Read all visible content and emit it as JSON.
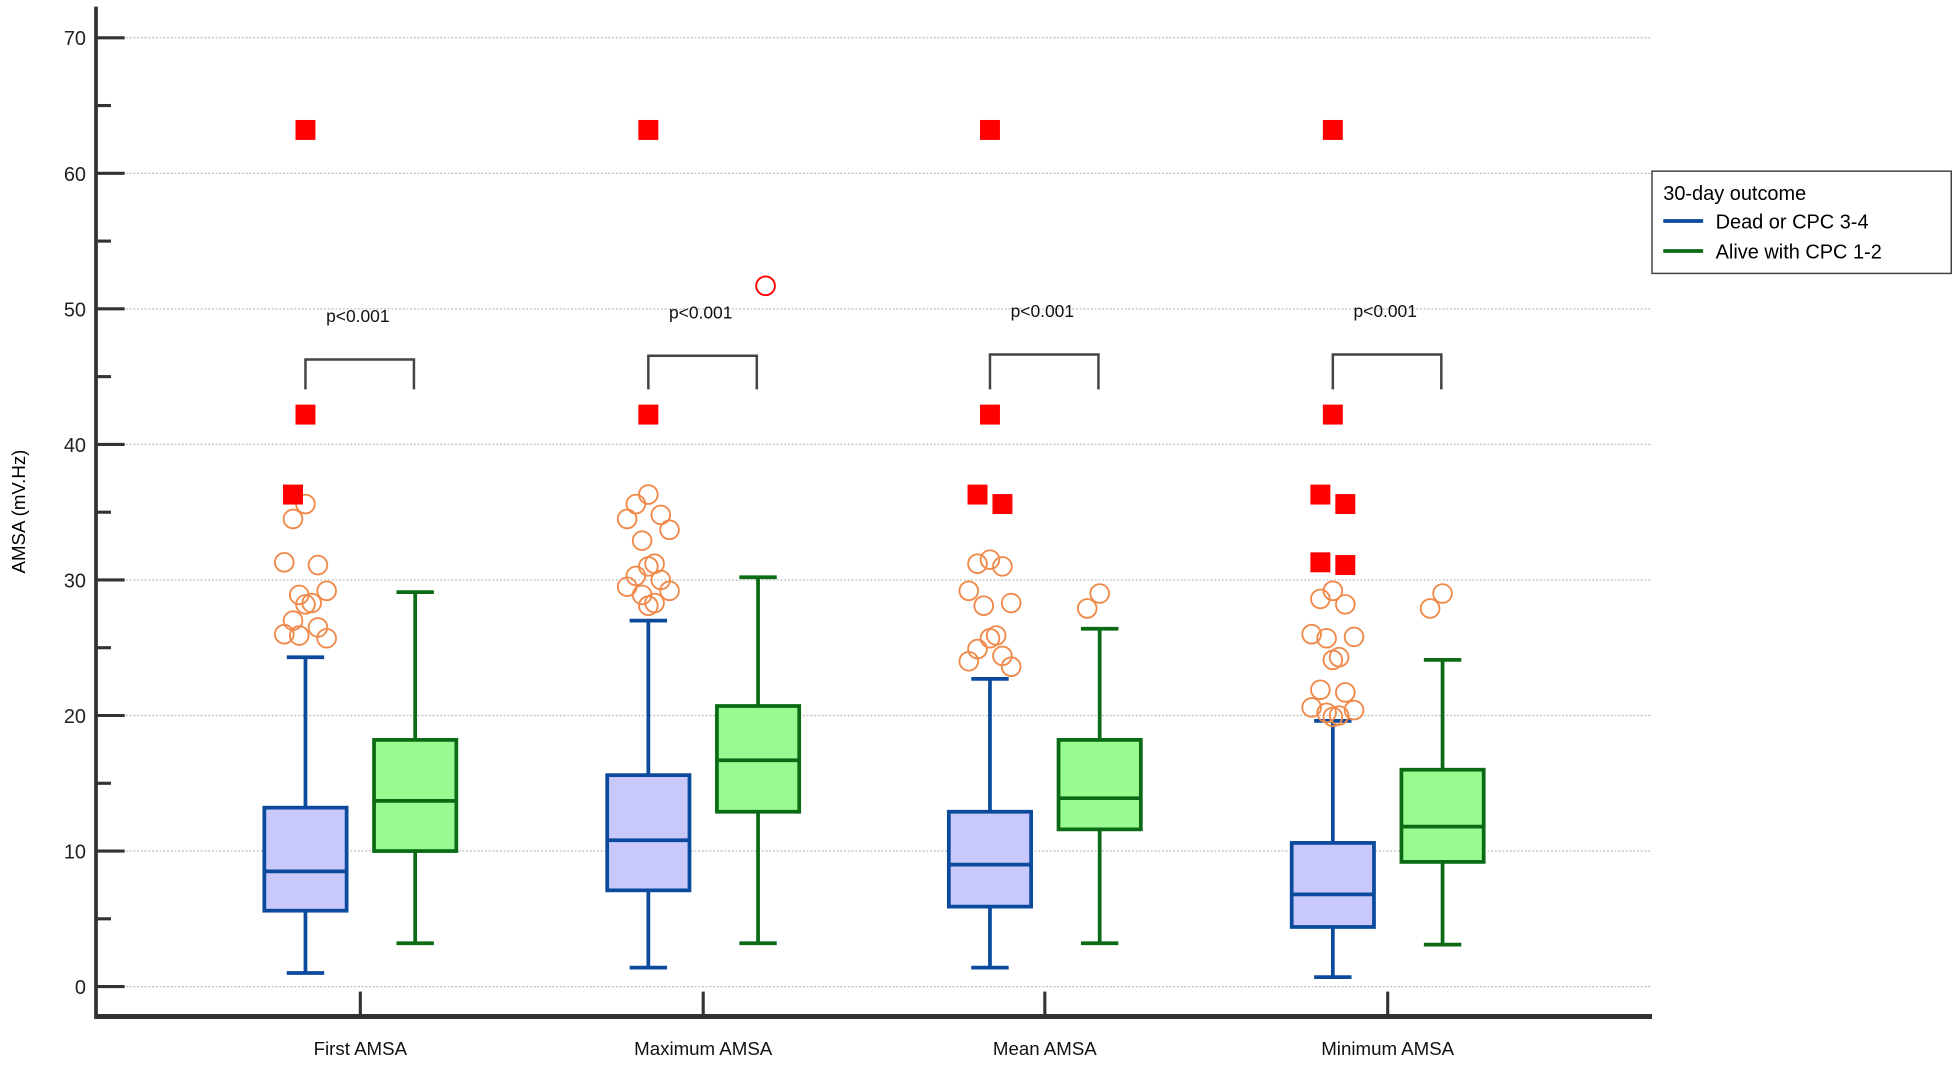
{
  "chart_data": {
    "type": "box",
    "title": "",
    "xlabel": "",
    "ylabel": "AMSA (mV.Hz)",
    "ylim": [
      0,
      70
    ],
    "yticks": [
      0,
      10,
      20,
      30,
      40,
      50,
      60,
      70
    ],
    "grid": true,
    "legend": {
      "title": "30-day outcome",
      "placement": "right",
      "entries": [
        {
          "name": "Dead or CPC 3-4",
          "color": "#0b4a9c"
        },
        {
          "name": "Alive with CPC 1-2",
          "color": "#0a6b14"
        }
      ]
    },
    "colors": {
      "dead_fill": "#c8c8fa",
      "dead_line": "#0b4a9c",
      "alive_fill": "#98fa90",
      "alive_line": "#0a6b14",
      "outlier": "#f08a4b",
      "far_outlier": "#ff0000"
    },
    "categories": [
      {
        "label": "First AMSA",
        "p_value": "p<0.001",
        "dead": {
          "min": 1.0,
          "q1": 5.6,
          "median": 8.5,
          "q3": 13.2,
          "max": 24.3,
          "outliers": [
            35.6,
            34.5,
            31.1,
            31.3,
            29.2,
            28.9,
            28.3,
            28.2,
            27.0,
            26.5,
            26.0,
            25.7,
            25.9
          ],
          "far_outliers": [
            63.2,
            42.2,
            36.3
          ]
        },
        "alive": {
          "min": 3.2,
          "q1": 10.0,
          "median": 13.7,
          "q3": 18.2,
          "max": 29.1,
          "outliers": [],
          "far_outliers": []
        }
      },
      {
        "label": "Maximum AMSA",
        "p_value": "p<0.001",
        "dead": {
          "min": 1.4,
          "q1": 7.1,
          "median": 10.8,
          "q3": 15.6,
          "max": 27.0,
          "outliers": [
            36.3,
            35.6,
            34.8,
            34.5,
            33.7,
            32.9,
            31.2,
            31.0,
            30.3,
            30.0,
            29.5,
            29.2,
            28.9,
            28.3,
            28.1
          ],
          "far_outliers": [
            63.2,
            42.2
          ]
        },
        "alive": {
          "min": 3.2,
          "q1": 12.9,
          "median": 16.7,
          "q3": 20.7,
          "max": 30.2,
          "outliers": [],
          "far_outliers": [
            51.7
          ]
        }
      },
      {
        "label": "Mean AMSA",
        "p_value": "p<0.001",
        "dead": {
          "min": 1.4,
          "q1": 5.9,
          "median": 9.0,
          "q3": 12.9,
          "max": 22.7,
          "outliers": [
            31.5,
            31.2,
            31.0,
            29.2,
            28.3,
            28.1,
            25.9,
            25.7,
            24.9,
            24.4,
            24.0,
            23.6
          ],
          "far_outliers": [
            63.2,
            42.2,
            36.3,
            35.6
          ]
        },
        "alive": {
          "min": 3.2,
          "q1": 11.6,
          "median": 13.9,
          "q3": 18.2,
          "max": 26.4,
          "outliers": [
            29.0,
            27.9
          ],
          "far_outliers": []
        }
      },
      {
        "label": "Minimum AMSA",
        "p_value": "p<0.001",
        "dead": {
          "min": 0.7,
          "q1": 4.4,
          "median": 6.8,
          "q3": 10.6,
          "max": 19.6,
          "outliers": [
            29.2,
            28.6,
            28.2,
            26.0,
            25.8,
            25.7,
            24.3,
            24.1,
            21.9,
            21.7,
            20.6,
            20.4,
            20.2,
            20.0,
            19.9
          ],
          "far_outliers": [
            63.2,
            42.2,
            36.3,
            35.6,
            31.3,
            31.1
          ]
        },
        "alive": {
          "min": 3.1,
          "q1": 9.2,
          "median": 11.8,
          "q3": 16.0,
          "max": 24.1,
          "outliers": [
            29.0,
            27.9
          ],
          "far_outliers": []
        }
      }
    ]
  }
}
